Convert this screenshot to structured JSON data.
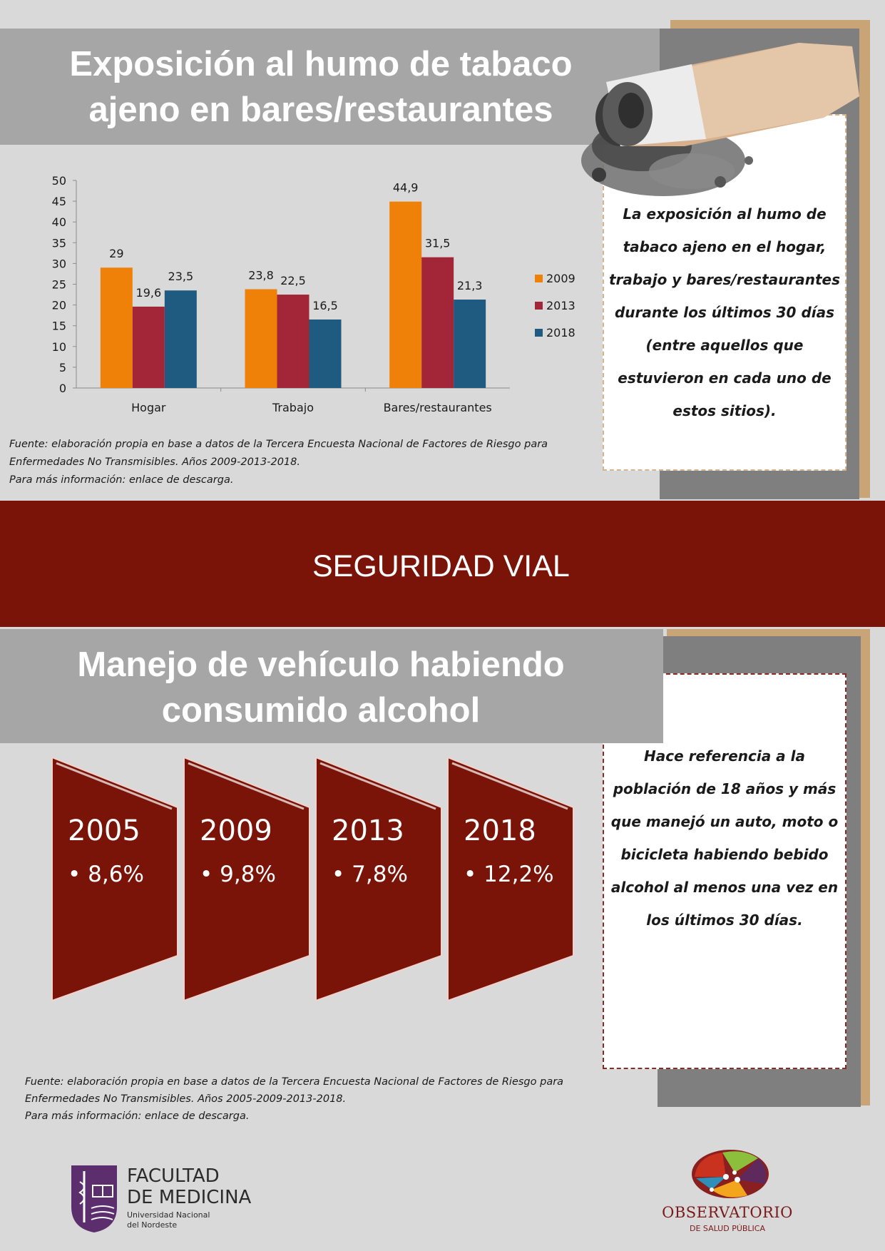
{
  "section1": {
    "title_line1": "Exposición al humo de tabaco",
    "title_line2": "ajeno en bares/restaurantes",
    "info_lines": [
      "La exposición al humo de",
      "tabaco ajeno en el hogar,",
      "trabajo y bares/restaurantes",
      "durante los últimos 30 días",
      "(entre aquellos que",
      "estuvieron en cada uno de",
      "estos sitios)."
    ],
    "source_lines": [
      "Fuente: elaboración propia en base a datos de la Tercera Encuesta Nacional de Factores de Riesgo para",
      "Enfermedades No Transmisibles. Años 2009-2013-2018.",
      "Para más información: enlace de descarga."
    ]
  },
  "chart_data": {
    "type": "bar",
    "categories": [
      "Hogar",
      "Trabajo",
      "Bares/restaurantes"
    ],
    "series": [
      {
        "name": "2009",
        "values": [
          29,
          23.8,
          44.9
        ],
        "labels": [
          "29",
          "23,8",
          "44,9"
        ],
        "color": "#f08108"
      },
      {
        "name": "2013",
        "values": [
          19.6,
          22.5,
          31.5
        ],
        "labels": [
          "19,6",
          "22,5",
          "31,5"
        ],
        "color": "#a32638"
      },
      {
        "name": "2018",
        "values": [
          23.5,
          16.5,
          21.3
        ],
        "labels": [
          "23,5",
          "16,5",
          "21,3"
        ],
        "color": "#1f5a80"
      }
    ],
    "ylim": [
      0,
      50
    ],
    "yticks": [
      0,
      5,
      10,
      15,
      20,
      25,
      30,
      35,
      40,
      45,
      50
    ],
    "legend": "right",
    "grid": false
  },
  "banner": {
    "label": "SEGURIDAD VIAL"
  },
  "section2": {
    "title_line1": "Manejo de vehículo habiendo",
    "title_line2": "consumido alcohol",
    "cards": [
      {
        "year": "2005",
        "value": "• 8,6%"
      },
      {
        "year": "2009",
        "value": "• 9,8%"
      },
      {
        "year": "2013",
        "value": "• 7,8%"
      },
      {
        "year": "2018",
        "value": "• 12,2%"
      }
    ],
    "info_lines": [
      "Hace referencia a la",
      "población de 18 años y más",
      "que manejó un auto, moto o",
      "bicicleta habiendo bebido",
      "alcohol al menos una vez en",
      "los últimos 30 días."
    ],
    "source_lines": [
      "Fuente: elaboración propia en base a datos de la Tercera Encuesta Nacional de Factores de Riesgo para",
      "Enfermedades No Transmisibles. Años 2005-2009-2013-2018.",
      "Para más información: enlace de descarga."
    ]
  },
  "footer": {
    "faculty_line1": "FACULTAD",
    "faculty_line2": "DE MEDICINA",
    "faculty_line3": "Universidad Nacional",
    "faculty_line4": "del Nordeste",
    "obs_line1": "OBSERVATORIO",
    "obs_line2": "DE SALUD PÚBLICA"
  },
  "colors": {
    "banner": "#7b1408",
    "card": "#7b1408",
    "band": "#a6a6a6"
  }
}
